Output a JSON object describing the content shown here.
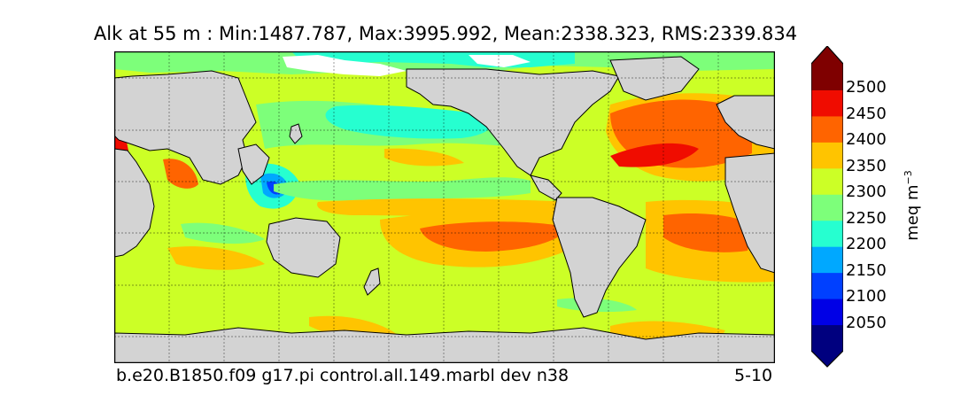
{
  "title": "Alk at 55 m : Min:1487.787, Max:3995.992, Mean:2338.323, RMS:2339.834",
  "footer": {
    "case_name": "b.e20.B1850.f09 g17.pi control.all.149.marbl dev n38",
    "years": "5-10"
  },
  "colorbar": {
    "unit_base": "meq m",
    "unit_exp": "−3",
    "ticks": [
      "2500",
      "2450",
      "2400",
      "2350",
      "2300",
      "2250",
      "2200",
      "2150",
      "2100",
      "2050"
    ],
    "levels": [
      {
        "value": 2000,
        "color": "#00007f"
      },
      {
        "value": 2050,
        "color": "#0000e6"
      },
      {
        "value": 2100,
        "color": "#0040ff"
      },
      {
        "value": 2150,
        "color": "#00a8ff"
      },
      {
        "value": 2200,
        "color": "#26ffd0"
      },
      {
        "value": 2250,
        "color": "#7dff7a"
      },
      {
        "value": 2300,
        "color": "#ccff26"
      },
      {
        "value": 2350,
        "color": "#ffc400"
      },
      {
        "value": 2400,
        "color": "#ff6400"
      },
      {
        "value": 2450,
        "color": "#f00c00"
      },
      {
        "value": 2500,
        "color": "#7f0000"
      }
    ],
    "extend_low_color": "#00007f",
    "extend_high_color": "#7f0000"
  },
  "map_colors": {
    "land": "#d3d3d3",
    "ice_mask": "#ffffff",
    "base_ocean": "#ccff26"
  }
}
